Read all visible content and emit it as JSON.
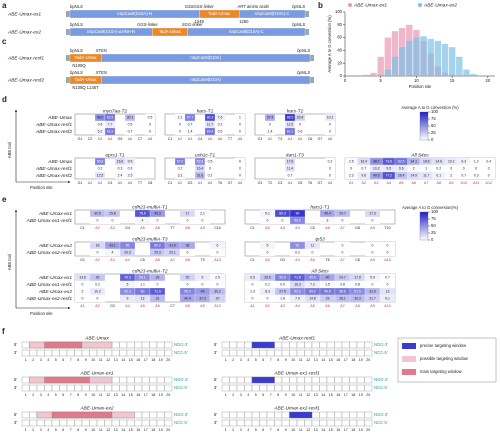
{
  "a": {
    "label": "a",
    "constructs": [
      {
        "name": "ABE-Umax-ex1",
        "above": [
          "bpNLS",
          "GSSGSS-linker",
          "ART amino acids",
          "bpNLS"
        ],
        "segments": [
          "nSpCas9(D10A)-N",
          "TadA-Umax",
          "nSpCas9(D10A)-C"
        ],
        "below": [
          "1249",
          "1250"
        ]
      },
      {
        "name": "ABE-Umax-ex2",
        "above": [
          "bpNLS",
          "GGS-linker",
          "SGG-linker",
          "bpNLS"
        ],
        "segments": [
          "nSpCas9(D10A)-ΔHNH-N",
          "TadA-Umax",
          "nSpCas9(D10A)-C"
        ],
        "below": []
      }
    ]
  },
  "b": {
    "label": "b",
    "ylabel": "Average A to G conversion (%)",
    "xlabel": "Position site",
    "xlim": [
      0,
      21
    ],
    "xticks": [
      0,
      5,
      10,
      15,
      20
    ],
    "ylim": [
      0,
      100
    ],
    "yticks": [
      0,
      20,
      40,
      60,
      80,
      100
    ],
    "x": [
      1,
      2,
      3,
      4,
      5,
      6,
      7,
      8,
      9,
      10,
      11,
      12,
      13,
      14,
      15,
      16,
      17,
      18,
      19,
      20
    ],
    "series": [
      {
        "name": "ABE-Umax-ex1",
        "color": "#e79ab4",
        "values": [
          0,
          0,
          2,
          5,
          30,
          60,
          70,
          75,
          80,
          72,
          55,
          35,
          15,
          5,
          2,
          1,
          0,
          0,
          0,
          0
        ]
      },
      {
        "name": "ABE-Umax-ex2",
        "color": "#7fbfe6",
        "values": [
          0,
          0,
          0,
          0,
          2,
          10,
          30,
          45,
          55,
          60,
          62,
          58,
          55,
          50,
          45,
          30,
          10,
          3,
          1,
          0
        ]
      }
    ]
  },
  "c": {
    "label": "c",
    "constructs": [
      {
        "name": "ABE-Umax-resf1",
        "above": [
          "bpNLS",
          "XTEN",
          "bpNLS"
        ],
        "segments": [
          "TadA-Umax",
          "nSpCas9(D10A)"
        ],
        "below": [
          "N108Q"
        ]
      },
      {
        "name": "ABE-Umax-resf2",
        "above": [
          "bpNLS",
          "XTEN",
          "bpNLS"
        ],
        "segments": [
          "TadA-Umax",
          "nSpCas9(D10A)"
        ],
        "below": [
          "N108Q L145T"
        ]
      }
    ]
  },
  "d": {
    "label": "d",
    "ylabel": "ABE tool",
    "xlabel": "Position site",
    "rowLabels": [
      "ABE-Umax",
      "ABE-Umax-resf1",
      "ABE-Umax-resf2"
    ],
    "legend": {
      "title": "Average A to G conversion (%)",
      "ticks": [
        0,
        25,
        50,
        75,
        100
      ]
    },
    "maps": [
      {
        "title": "myo7aa-T2",
        "columns": [
          "G1",
          "C2",
          "A3",
          "A4",
          "G5",
          "A6",
          "C7",
          "A8"
        ],
        "values": [
          [
            null,
            null,
            48.9,
            62.5,
            null,
            30.1,
            null,
            0.5
          ],
          [
            null,
            null,
            0.8,
            7.7,
            null,
            0.5,
            null,
            0
          ],
          [
            null,
            null,
            5.2,
            61.5,
            null,
            0.7,
            null,
            0
          ]
        ]
      },
      {
        "title": "hars-T1",
        "columns": [
          "C1",
          "A2",
          "A3",
          "C4",
          "A5",
          "A6",
          "T7",
          "A8"
        ],
        "values": [
          [
            null,
            2.1,
            57.7,
            null,
            80.3,
            7.6,
            null,
            1.0
          ],
          [
            null,
            0,
            0.7,
            null,
            11.7,
            0.2,
            null,
            0
          ],
          [
            null,
            0,
            1.4,
            null,
            63.4,
            0.5,
            null,
            0
          ]
        ]
      },
      {
        "title": "hars-T2",
        "columns": [
          "G1",
          "A2",
          "T3",
          "A4",
          "A5",
          "C6",
          "G7",
          "A8"
        ],
        "values": [
          [
            null,
            37.4,
            null,
            88.5,
            20.4,
            null,
            null,
            10.2
          ],
          [
            null,
            0,
            null,
            11.5,
            0,
            null,
            null,
            0
          ],
          [
            null,
            1.4,
            null,
            62.1,
            0.6,
            null,
            null,
            0
          ]
        ]
      },
      {
        "title": "eprs1-T1",
        "columns": [
          "G1",
          "A2",
          "A3",
          "C4",
          "A5",
          "A6",
          "T7",
          "C8"
        ],
        "values": [
          [
            null,
            null,
            56.8,
            null,
            16.6,
            9.5,
            null,
            null
          ],
          [
            null,
            null,
            0.2,
            null,
            0.3,
            0.3,
            null,
            null
          ],
          [
            null,
            null,
            12.5,
            null,
            2.4,
            2.5,
            null,
            null
          ]
        ]
      },
      {
        "title": "ush1c-T1",
        "columns": [
          "C1",
          "A2",
          "G3",
          "A4",
          "A5",
          "T6",
          "G7",
          "A8"
        ],
        "values": [
          [
            null,
            57.6,
            null,
            52.5,
            0.5,
            null,
            null,
            0
          ],
          [
            null,
            0.2,
            null,
            16.4,
            0,
            null,
            null,
            0
          ],
          [
            null,
            3.1,
            null,
            31.6,
            0.2,
            null,
            null,
            0
          ]
        ]
      },
      {
        "title": "itan1-T3",
        "columns": [
          "G1",
          "T2",
          "C3",
          "A4",
          "C5",
          "T6",
          "G7",
          "A8"
        ],
        "values": [
          [
            null,
            null,
            null,
            17.6,
            null,
            null,
            null,
            0.2
          ],
          [
            null,
            null,
            null,
            11.4,
            null,
            null,
            null,
            0
          ],
          [
            null,
            null,
            null,
            0.7,
            null,
            null,
            null,
            0
          ]
        ]
      },
      {
        "title": "All Sites",
        "columns": [
          "A1",
          "A2",
          "A3",
          "A4",
          "A5",
          "A6",
          "A7",
          "A8",
          "A9",
          "A10",
          "A11",
          "A12"
        ],
        "values": [
          [
            2.5,
            16.4,
            48.7,
            73.6,
            62.5,
            34.1,
            18.8,
            14.6,
            10.2,
            6.3,
            1.2,
            0.4
          ],
          [
            0,
            0.7,
            10.2,
            9.5,
            9.6,
            2.0,
            1.0,
            0.2,
            0,
            0,
            0,
            0
          ],
          [
            2.3,
            9.6,
            40.6,
            77.2,
            26.4,
            14.9,
            11.7,
            6.1,
            2.0,
            0.7,
            0.3,
            0
          ]
        ]
      }
    ]
  },
  "e": {
    "label": "e",
    "ylabel": "ABE tool",
    "xlabel": "Position site",
    "legend": {
      "title": "Average A to G conversion(%)",
      "ticks": [
        0,
        25,
        50,
        75,
        100
      ]
    },
    "rows": [
      {
        "labels": [
          "ABE-Umax-ex1",
          "ABE-Umax-ex1-resf1"
        ],
        "maps": [
          {
            "title": "cdh23-multiA-T1",
            "columns": [
              "C1",
              "A2",
              "A3",
              "G4",
              "A5",
              "A6",
              "T7",
              "A8",
              "A9",
              "C10"
            ],
            "values": [
              [
                null,
                30.5,
                25.8,
                null,
                75.9,
                46.3,
                null,
                17.0,
                2.1,
                null
              ],
              [
                null,
                0,
                0,
                null,
                4.0,
                0,
                null,
                0,
                0,
                null
              ]
            ]
          },
          {
            "title": "hars1-T1",
            "columns": [
              "C1",
              "A2",
              "A3",
              "A4",
              "C5",
              "A6",
              "A7",
              "G8",
              "A9",
              "T10"
            ],
            "values": [
              [
                null,
                5.1,
                80.3,
                90.0,
                null,
                40.4,
                29.7,
                null,
                17.3,
                null
              ],
              [
                null,
                0,
                0,
                53.2,
                null,
                3.0,
                0,
                null,
                0,
                null
              ]
            ]
          }
        ]
      },
      {
        "labels": [
          "ABE-Umax-ex2",
          "ABE-Umax-ex2-resf1"
        ],
        "maps": [
          {
            "title": "cdh23-multiA-T3",
            "columns": [
              "G1",
              "A2",
              "A3",
              "A4",
              "C5",
              "A6",
              "A7",
              "A8",
              "T9",
              "A10"
            ],
            "values": [
              [
                null,
                18.0,
                43.1,
                55.0,
                null,
                60.2,
                41.9,
                38.0,
                null,
                6.0
              ],
              [
                null,
                0,
                4.0,
                20.3,
                null,
                25.3,
                20.1,
                0,
                null,
                0
              ]
            ]
          },
          {
            "title": "tp53",
            "columns": [
              "C1",
              "A2",
              "G3",
              "A4",
              "A5",
              "T6",
              "A7",
              "C8",
              "A9",
              "A10"
            ],
            "values": [
              [
                null,
                5.0,
                null,
                51.0,
                11.0,
                null,
                0,
                null,
                0,
                0
              ],
              [
                null,
                0,
                null,
                0.2,
                0,
                null,
                0,
                null,
                0,
                0
              ]
            ]
          }
        ]
      },
      {
        "labels": [
          "ABE-Umax-ex1",
          "ABE-Umax-ex1-resf1",
          "ABE-Umax-ex2",
          "ABE-Umax-ex2-resf1"
        ],
        "maps": [
          {
            "title": "cdh23-multiA-T2",
            "columns": [
              "A1",
              "A2",
              "G3",
              "A4",
              "A5",
              "A6",
              "C7",
              "A8",
              "A9",
              "A10"
            ],
            "values": [
              [
                13.8,
                26.0,
                null,
                70.3,
                50.1,
                33.0,
                null,
                20.0,
                9.0,
                2.5
              ],
              [
                0,
                0.2,
                null,
                5.0,
                1.1,
                0,
                null,
                0,
                0,
                0
              ],
              [
                2.0,
                10.2,
                null,
                52.3,
                60.0,
                72.9,
                null,
                55.3,
                45.0,
                30.2
              ],
              [
                0,
                0,
                null,
                9.0,
                13.0,
                31.0,
                null,
                40.4,
                37.3,
                20.0
              ]
            ]
          },
          {
            "title": "All Sites",
            "columns": [
              "A1",
              "A2",
              "A3",
              "A4",
              "A5",
              "A6",
              "A7",
              "A8",
              "A9",
              "A10"
            ],
            "values": [
              [
                9.5,
                26.6,
                55.9,
                71.8,
                55.5,
                40.0,
                24.7,
                17.9,
                5.9,
                0.7
              ],
              [
                0,
                0.2,
                0.9,
                16.3,
                7.2,
                1.5,
                0.8,
                0.8,
                0,
                0
              ],
              [
                1.3,
                8.3,
                27.5,
                52.2,
                59.2,
                59.5,
                58.6,
                51.5,
                31.9,
                13.0
              ],
              [
                0,
                0,
                1.8,
                7.9,
                14.8,
                23.0,
                28.1,
                30.3,
                21.7,
                9.1
              ]
            ]
          }
        ]
      }
    ]
  },
  "f": {
    "label": "f",
    "positions": [
      1,
      2,
      3,
      4,
      5,
      6,
      7,
      8,
      9,
      10,
      11,
      12,
      13,
      14,
      15,
      16,
      17,
      18,
      19,
      20
    ],
    "top5": "5'",
    "top3": "NGG-3'",
    "bottom3": "3'",
    "bottom5": "NCC-5'",
    "legend": [
      "precise targeting window",
      "possible targeting window",
      "main targeting window"
    ],
    "diagrams": [
      {
        "title": "ABE-Umax",
        "possible": [
          2,
          12
        ],
        "main": [
          4,
          8
        ]
      },
      {
        "title": "ABE-Umax-resf1",
        "precise": [
          5,
          7
        ]
      },
      {
        "title": "ABE-Umax-ex1",
        "possible": [
          2,
          12
        ],
        "main": [
          4,
          9
        ]
      },
      {
        "title": "ABE-Umax-ex1-resf1",
        "precise": [
          5,
          7
        ]
      },
      {
        "title": "ABE-Umax-ex2",
        "possible": [
          3,
          15
        ],
        "main": [
          5,
          12
        ]
      },
      {
        "title": "ABE-Umax-ex2-resf1",
        "precise": [
          10,
          12
        ]
      }
    ]
  }
}
